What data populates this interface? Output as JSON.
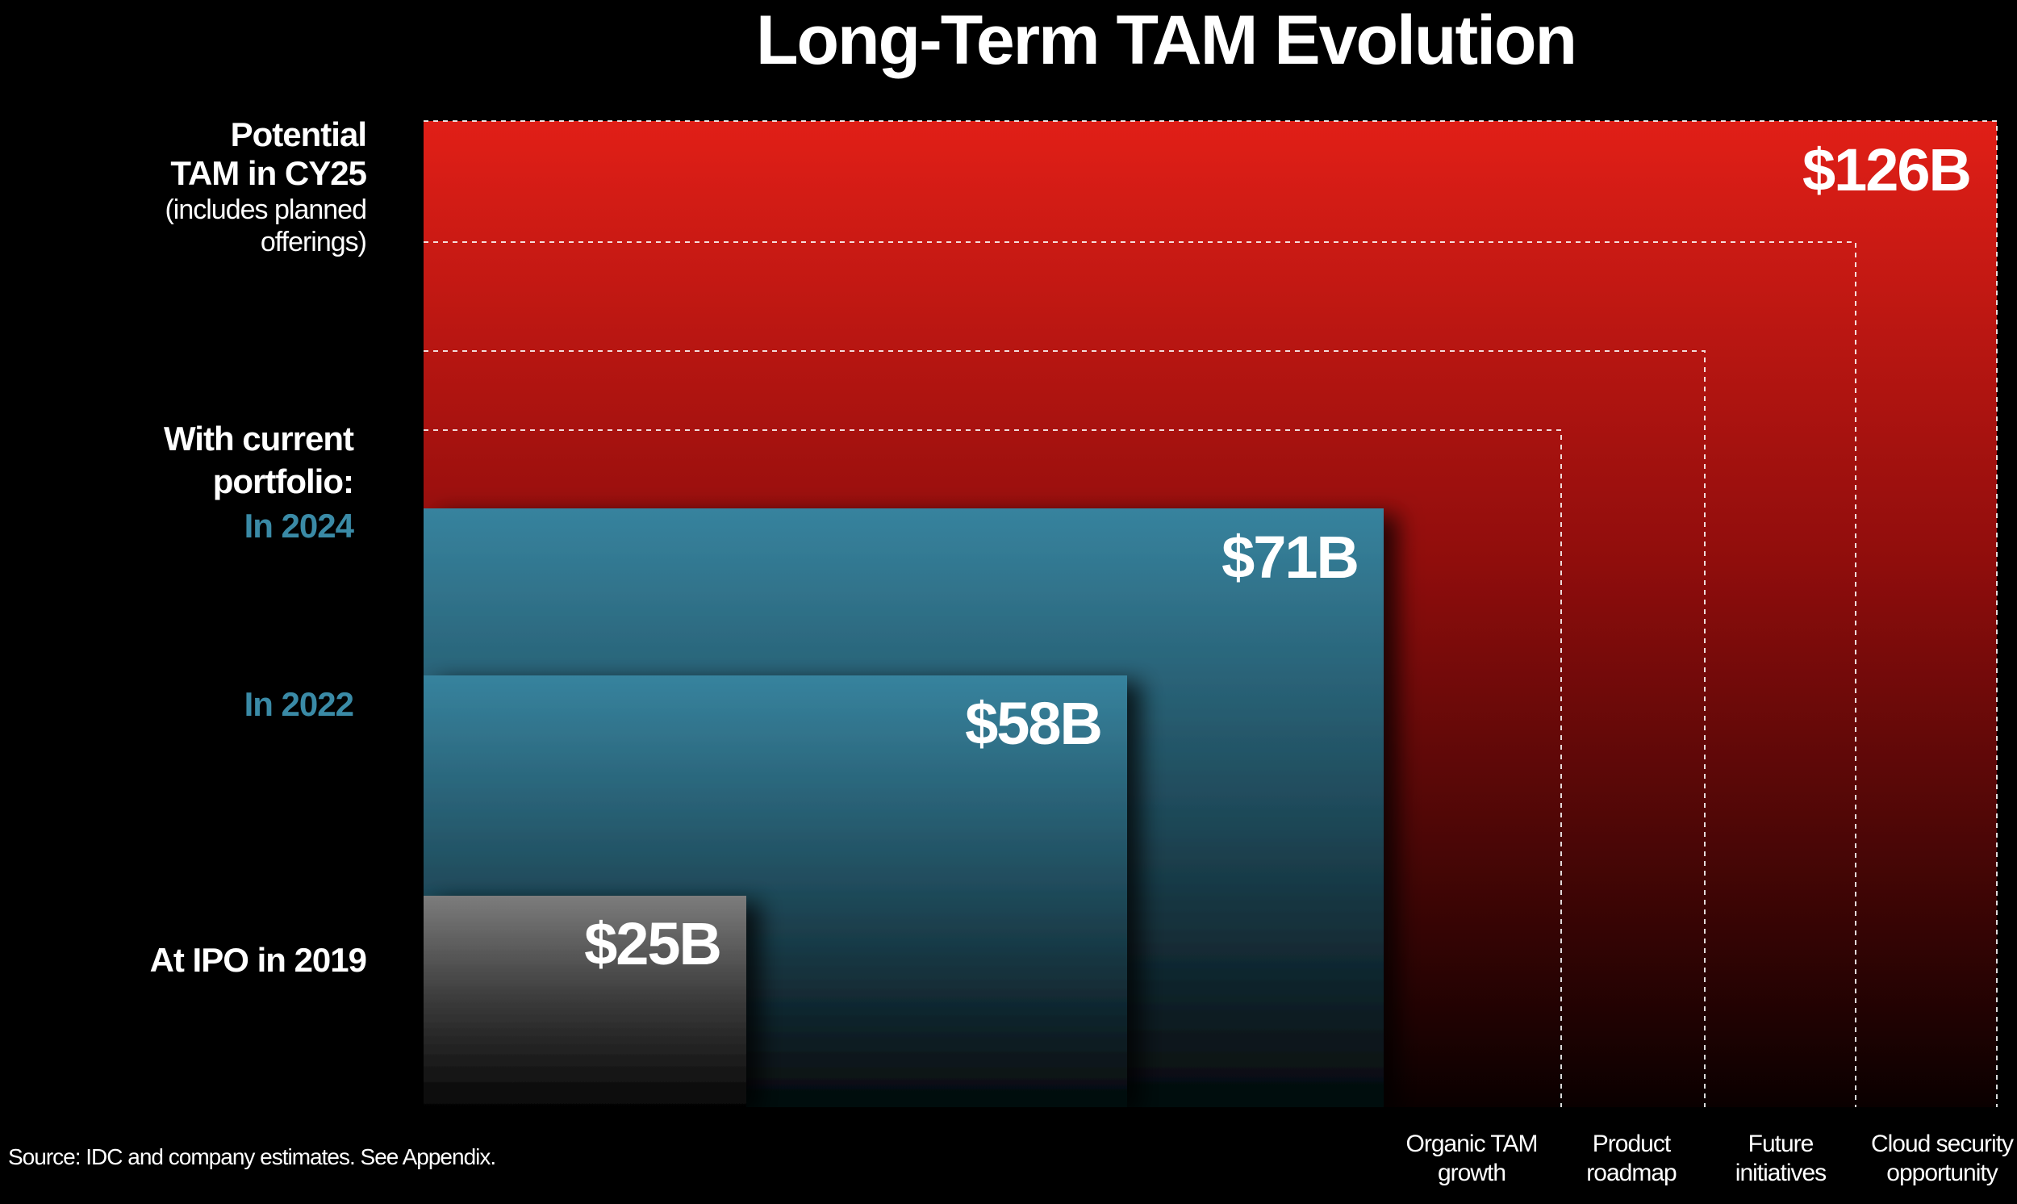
{
  "chart_data": {
    "type": "nested-area",
    "title": "Long-Term TAM Evolution",
    "unit": "$B",
    "potential": {
      "label": "Potential TAM in CY25",
      "sublabel": "(includes planned offerings)",
      "value": 126,
      "value_label": "$126B",
      "color": "#e01f17",
      "components": [
        {
          "name": "Organic TAM growth",
          "label": "Organic TAM\ngrowth"
        },
        {
          "name": "Product roadmap",
          "label": "Product\nroadmap"
        },
        {
          "name": "Future initiatives",
          "label": "Future\ninitiatives"
        },
        {
          "name": "Cloud security opportunity",
          "label": "Cloud security\nopportunity"
        }
      ]
    },
    "current_portfolio_label": "With current portfolio:",
    "series": [
      {
        "name": "In 2024",
        "value": 71,
        "value_label": "$71B",
        "color": "#3a8aa6"
      },
      {
        "name": "In 2022",
        "value": 58,
        "value_label": "$58B",
        "color": "#3a8aa6"
      },
      {
        "name": "At IPO in 2019",
        "value": 25,
        "value_label": "$25B",
        "color": "#7a7a7a"
      }
    ]
  },
  "source": "Source: IDC and company estimates. See Appendix."
}
